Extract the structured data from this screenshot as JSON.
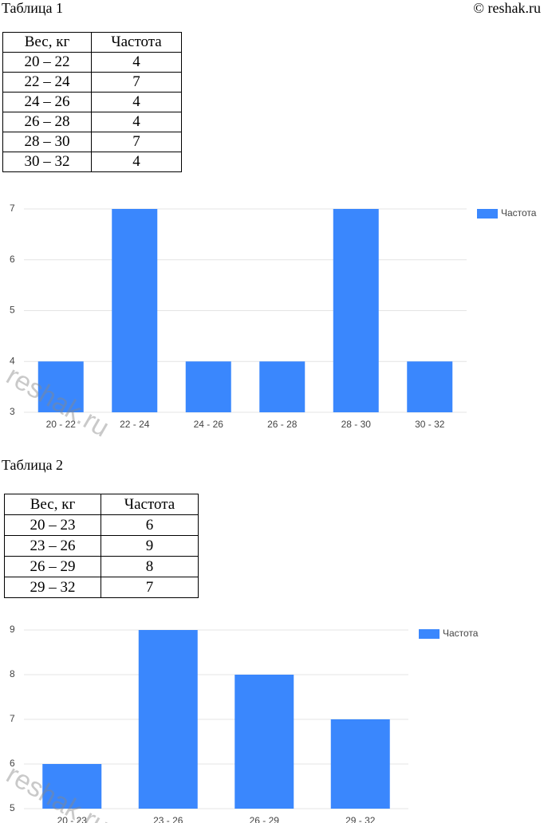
{
  "header": {
    "table1_title": "Таблица 1",
    "copyright": "© reshak.ru",
    "table2_title": "Таблица 2",
    "watermark": "reshak.ru"
  },
  "table1": {
    "header": [
      "Вес, кг",
      "Частота"
    ],
    "rows": [
      [
        "20 – 22",
        4
      ],
      [
        "22 – 24",
        7
      ],
      [
        "24 – 26",
        4
      ],
      [
        "26 – 28",
        4
      ],
      [
        "28 – 30",
        7
      ],
      [
        "30 – 32",
        4
      ]
    ]
  },
  "table2": {
    "header": [
      "Вес, кг",
      "Частота"
    ],
    "rows": [
      [
        "20 – 23",
        6
      ],
      [
        "23 – 26",
        9
      ],
      [
        "26 – 29",
        8
      ],
      [
        "29 – 32",
        7
      ]
    ]
  },
  "chart_data": [
    {
      "type": "bar",
      "categories": [
        "20 - 22",
        "22 - 24",
        "24 - 26",
        "26 - 28",
        "28 - 30",
        "30 - 32"
      ],
      "series": [
        {
          "name": "Частота",
          "color": "#3a87fd",
          "values": [
            4,
            7,
            4,
            4,
            7,
            4
          ]
        }
      ],
      "ylim": [
        3,
        7
      ],
      "yticks": [
        3,
        4,
        5,
        6,
        7
      ],
      "grid": true,
      "legend": "right"
    },
    {
      "type": "bar",
      "categories": [
        "20 - 23",
        "23 - 26",
        "26 - 29",
        "29 - 32"
      ],
      "series": [
        {
          "name": "Частота",
          "color": "#3a87fd",
          "values": [
            6,
            9,
            8,
            7
          ]
        }
      ],
      "ylim": [
        5,
        9
      ],
      "yticks": [
        5,
        6,
        7,
        8,
        9
      ],
      "grid": true,
      "legend": "right"
    }
  ]
}
